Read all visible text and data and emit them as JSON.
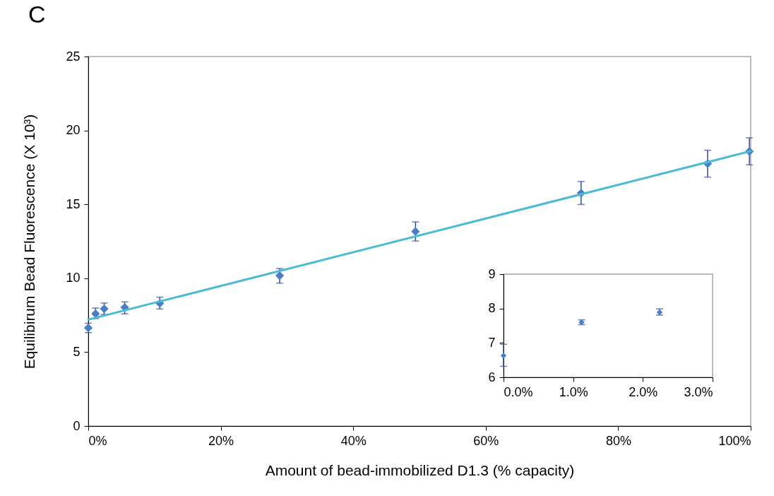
{
  "chart_data": [
    {
      "type": "scatter",
      "title": "C",
      "xlabel": "Amount of bead-immobilized D1.3 (% capacity)",
      "ylabel": "Equilibirum Bead Fluorescence (X 10³)",
      "xlim": [
        0,
        100
      ],
      "xticks": [
        {
          "value": 0,
          "label": "0%"
        },
        {
          "value": 20,
          "label": "20%"
        },
        {
          "value": 40,
          "label": "40%"
        },
        {
          "value": 60,
          "label": "60%"
        },
        {
          "value": 80,
          "label": "80%"
        },
        {
          "value": 100,
          "label": "100%"
        }
      ],
      "ylim": [
        0,
        25
      ],
      "yticks": [
        0,
        5,
        10,
        15,
        20,
        25
      ],
      "marker": "diamond",
      "series": [
        {
          "color": "#4a7ec4",
          "x": [
            0,
            1.1,
            2.4,
            5.5,
            10.8,
            28.9,
            49.4,
            74.4,
            93.5,
            99.8
          ],
          "values": [
            6.64,
            7.6,
            7.93,
            8.03,
            8.3,
            10.18,
            13.16,
            15.76,
            17.75,
            18.58
          ],
          "errors": [
            [
              6.32,
              6.96
            ],
            [
              7.27,
              7.98
            ],
            [
              7.55,
              8.32
            ],
            [
              7.59,
              8.4
            ],
            [
              7.92,
              8.72
            ],
            [
              9.67,
              10.66
            ],
            [
              12.52,
              13.81
            ],
            [
              14.99,
              16.55
            ],
            [
              16.84,
              18.66
            ],
            [
              17.67,
              19.5
            ]
          ]
        },
        {
          "type": "line",
          "color": "#4bbad3",
          "x": [
            0,
            100
          ],
          "values": [
            7.2,
            18.6
          ],
          "marker": "none",
          "line_style": "solid"
        }
      ]
    },
    {
      "type": "scatter",
      "xlim": [
        0,
        3
      ],
      "xticks": [
        {
          "value": 0,
          "label": "0.0%"
        },
        {
          "value": 1,
          "label": "1.0%"
        },
        {
          "value": 2,
          "label": "2.0%"
        },
        {
          "value": 3,
          "label": "3.0%"
        }
      ],
      "ylim": [
        6,
        9
      ],
      "yticks": [
        6,
        7,
        8,
        9
      ],
      "marker": "diamond",
      "series": [
        {
          "color": "#4a7ec4",
          "x": [
            0,
            1.12,
            2.24
          ],
          "values": [
            6.63,
            7.6,
            7.89
          ],
          "errors": [
            [
              6.32,
              6.96
            ],
            [
              7.53,
              7.67
            ],
            [
              7.81,
              7.99
            ]
          ]
        }
      ]
    }
  ]
}
